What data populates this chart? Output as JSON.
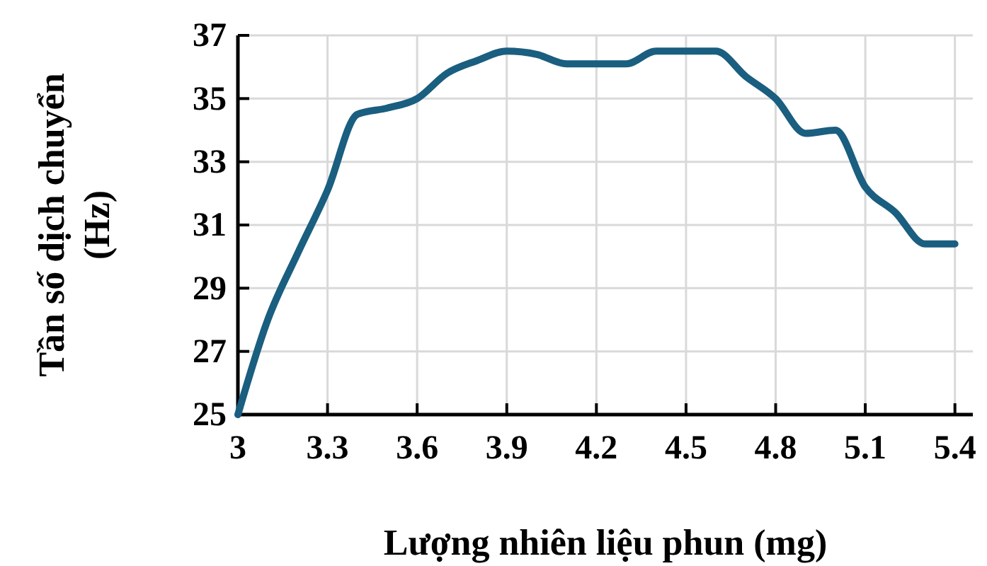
{
  "chart_data": {
    "type": "line",
    "xlabel": "Lượng nhiên liệu phun (mg)",
    "ylabel": "Tần số dịch chuyển (Hz)",
    "x": [
      3,
      3.1,
      3.2,
      3.3,
      3.4,
      3.5,
      3.6,
      3.7,
      3.8,
      3.9,
      4.0,
      4.1,
      4.2,
      4.3,
      4.4,
      4.5,
      4.6,
      4.7,
      4.8,
      4.9,
      5.0,
      5.1,
      5.2,
      5.3,
      5.4
    ],
    "series": [
      {
        "color": "#1a5e80",
        "values": [
          25,
          28.0,
          30.1,
          32.1,
          34.5,
          34.7,
          35.0,
          35.8,
          36.2,
          36.5,
          36.4,
          36.1,
          36.1,
          36.1,
          36.5,
          36.5,
          36.5,
          35.7,
          35.0,
          33.9,
          34.0,
          32.2,
          31.4,
          30.4,
          30.4
        ]
      }
    ],
    "xlim": [
      3,
      5.46
    ],
    "xticks": [
      3,
      3.3,
      3.6,
      3.9,
      4.2,
      4.5,
      4.8,
      5.1,
      5.4
    ],
    "ylim": [
      25,
      37
    ],
    "yticks": [
      25,
      27,
      29,
      31,
      33,
      35,
      37
    ],
    "grid": true,
    "marker": "none",
    "line_style": "solid"
  }
}
